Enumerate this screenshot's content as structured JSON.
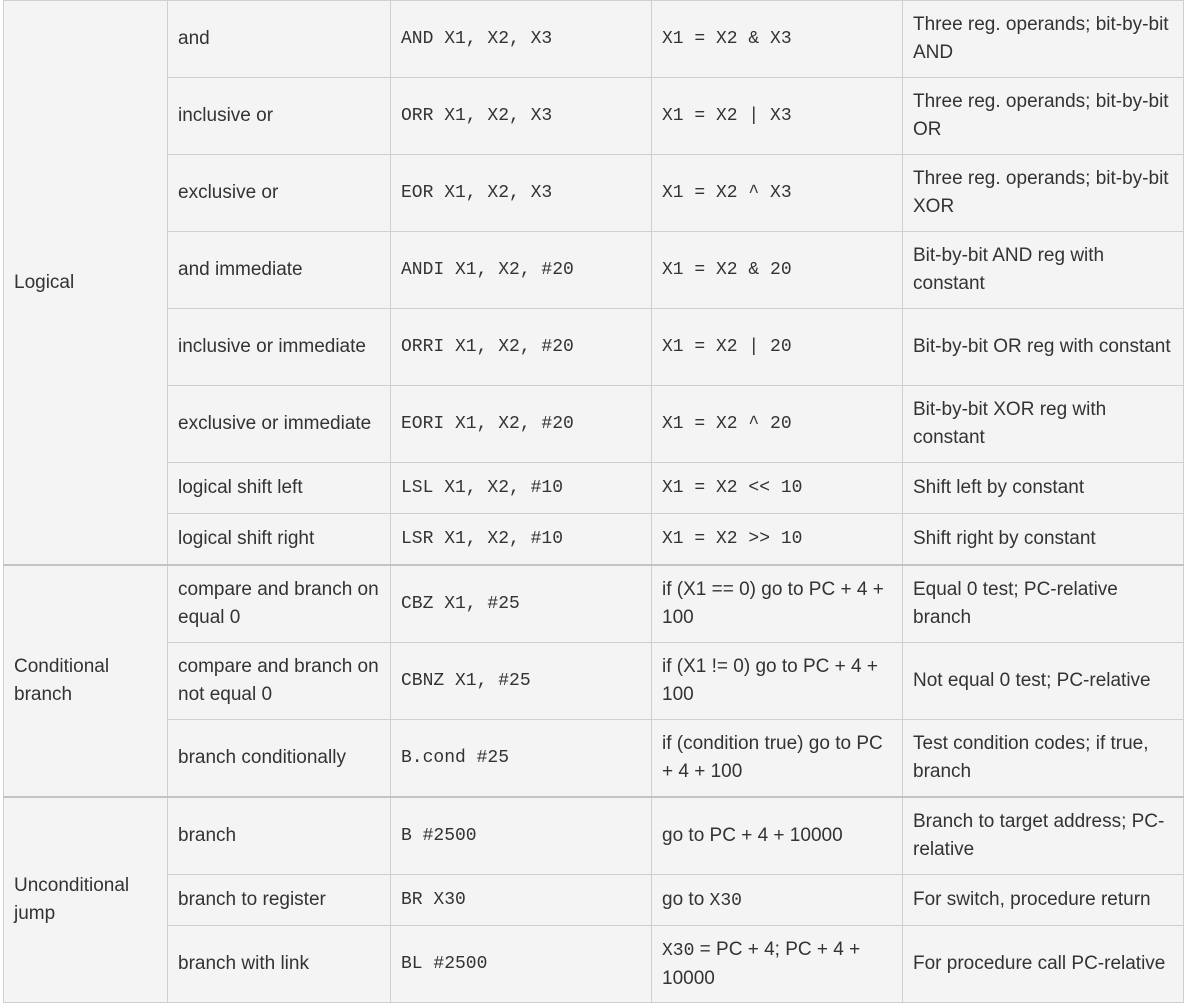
{
  "groups": [
    {
      "category": "Logical",
      "rows": [
        {
          "name": "and",
          "example": "AND X1, X2, X3",
          "meaning": "X1 = X2 & X3",
          "comment": "Three reg. operands; bit-by-bit AND"
        },
        {
          "name": "inclusive or",
          "example": "ORR X1, X2, X3",
          "meaning": "X1 = X2 | X3",
          "comment": "Three reg. operands; bit-by-bit OR"
        },
        {
          "name": "exclusive or",
          "example": "EOR X1, X2, X3",
          "meaning": "X1 = X2 ^ X3",
          "comment": "Three reg. operands; bit-by-bit XOR"
        },
        {
          "name": "and immediate",
          "example": "ANDI X1, X2, #20",
          "meaning": "X1 = X2 & 20",
          "comment": "Bit-by-bit AND reg with constant"
        },
        {
          "name": "inclusive or immediate",
          "example": "ORRI X1, X2, #20",
          "meaning": "X1 = X2 | 20",
          "comment": "Bit-by-bit OR reg with constant"
        },
        {
          "name": "exclusive or immediate",
          "example": "EORI X1, X2, #20",
          "meaning": "X1 = X2 ^ 20",
          "comment": "Bit-by-bit XOR reg with constant"
        },
        {
          "name": "logical shift left",
          "example": "LSL X1, X2, #10",
          "meaning": "X1 = X2 << 10",
          "comment": "Shift left by constant"
        },
        {
          "name": "logical shift right",
          "example": "LSR X1, X2, #10",
          "meaning": "X1 = X2 >> 10",
          "comment": "Shift right by constant"
        }
      ]
    },
    {
      "category": "Conditional branch",
      "rows": [
        {
          "name": "compare and branch on equal 0",
          "example": "CBZ X1, #25",
          "meaning": "if (X1 == 0) go to PC + 4 + 100",
          "comment": "Equal 0 test; PC-relative branch"
        },
        {
          "name": "compare and branch on not equal 0",
          "example": "CBNZ X1, #25",
          "meaning": "if (X1 != 0) go to PC + 4 + 100",
          "comment": "Not equal 0 test; PC-relative"
        },
        {
          "name": "branch conditionally",
          "example": "B.cond #25",
          "meaning": "if (condition true) go to PC + 4 + 100",
          "comment": "Test condition codes; if true, branch"
        }
      ]
    },
    {
      "category": "Unconditional jump",
      "rows": [
        {
          "name": "branch",
          "example": "B #2500",
          "meaning": "go to PC + 4 + 10000",
          "comment": "Branch to target address; PC-relative"
        },
        {
          "name": "branch to register",
          "example": "BR X30",
          "meaning_prefix": "go to ",
          "meaning_mono": "X30",
          "comment": "For switch, procedure return"
        },
        {
          "name": "branch with link",
          "example": "BL #2500",
          "meaning_mono": "X30",
          "meaning_suffix": " = PC + 4; PC + 4 + 10000",
          "comment": "For procedure call PC-relative"
        }
      ]
    }
  ]
}
